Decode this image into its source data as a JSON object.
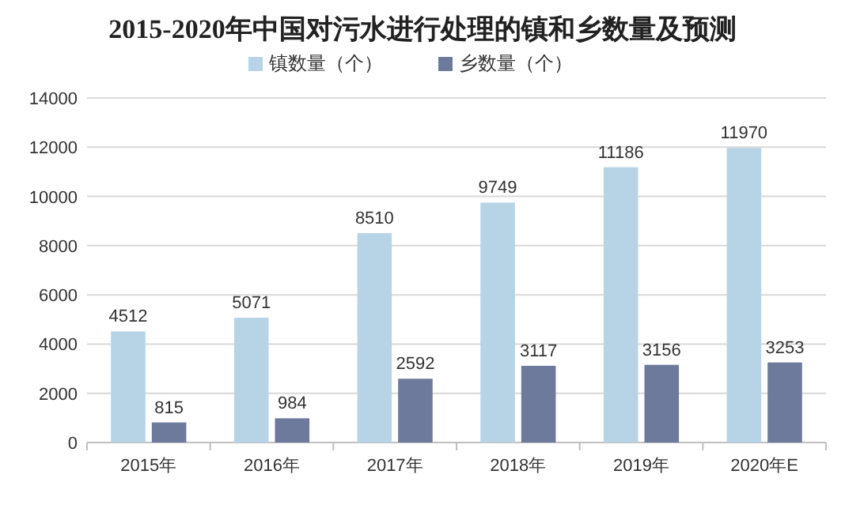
{
  "chart_data": {
    "type": "bar",
    "title": "2015-2020年中国对污水进行处理的镇和乡数量及预测",
    "categories": [
      "2015年",
      "2016年",
      "2017年",
      "2018年",
      "2019年",
      "2020年E"
    ],
    "series": [
      {
        "name": "镇数量（个）",
        "color": "#b7d4e6",
        "values": [
          4512,
          5071,
          8510,
          9749,
          11186,
          11970
        ]
      },
      {
        "name": "乡数量（个）",
        "color": "#6e7a9c",
        "values": [
          815,
          984,
          2592,
          3117,
          3156,
          3253
        ]
      }
    ],
    "ylim": [
      0,
      14000
    ],
    "yticks": [
      0,
      2000,
      4000,
      6000,
      8000,
      10000,
      12000,
      14000
    ],
    "grid": "y",
    "legend": "top",
    "data_labels": true
  }
}
